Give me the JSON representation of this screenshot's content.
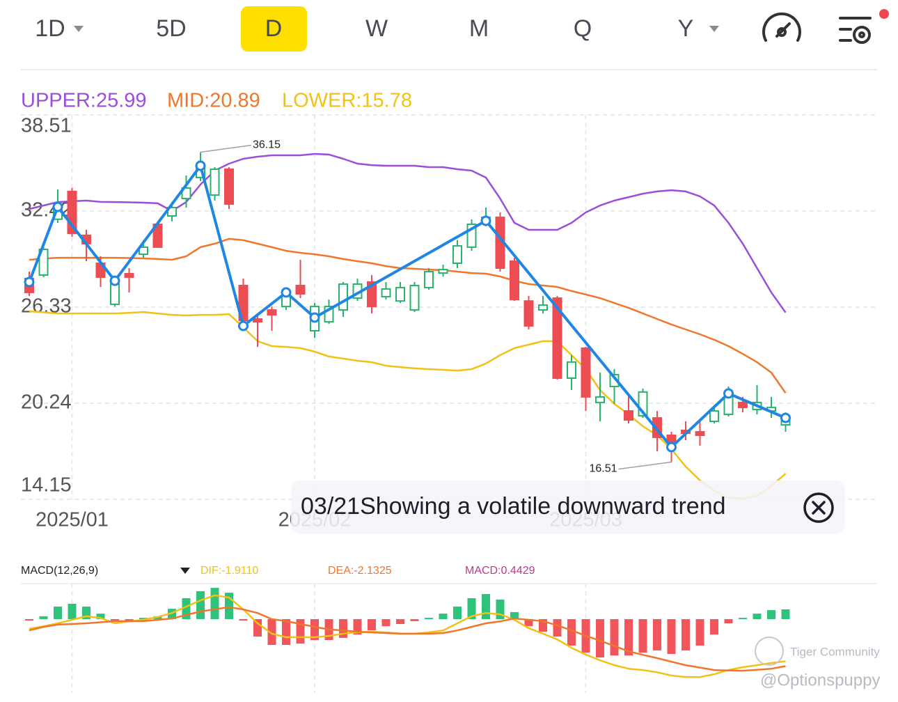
{
  "toolbar": {
    "tabs": [
      "1D",
      "5D",
      "D",
      "W",
      "M",
      "Q",
      "Y"
    ],
    "selected": 2,
    "dropdown_tabs": [
      0,
      6
    ]
  },
  "chart_data": {
    "type": "candlestick",
    "legend": [
      "UPPER:25.99",
      "MID:20.89",
      "LOWER:15.78"
    ],
    "ylim": [
      14.15,
      38.51
    ],
    "yticks": [
      14.15,
      20.24,
      26.33,
      32.42,
      38.51
    ],
    "grid": true,
    "xlim": [
      0,
      53
    ],
    "xticks": [
      {
        "value": 3,
        "label": "2025/01"
      },
      {
        "value": 20,
        "label": "2025/02"
      },
      {
        "value": 39,
        "label": "2025/03"
      }
    ],
    "up_color": "#27b36a",
    "down_color": "#ec4d53",
    "candles": {
      "open": [
        28.14,
        28.36,
        31.9,
        33.66,
        30.88,
        29.11,
        26.51,
        28.45,
        29.68,
        31.58,
        32.11,
        33.21,
        34.54,
        33.43,
        35.07,
        27.7,
        25.58,
        26.15,
        26.37,
        27.7,
        24.83,
        25.4,
        26.15,
        26.9,
        27.92,
        26.99,
        26.72,
        26.15,
        27.57,
        28.49,
        29.11,
        30.13,
        31.67,
        32.02,
        29.24,
        26.72,
        26.15,
        26.9,
        21.83,
        23.73,
        20.29,
        21.3,
        19.75,
        19.44,
        19.31,
        18.21,
        18.52,
        18.43,
        19.09,
        19.53,
        20.29,
        19.84,
        19.75,
        18.87
      ],
      "close": [
        27.26,
        29.99,
        32.77,
        31.0,
        30.35,
        28.23,
        27.92,
        28.23,
        30.13,
        30.13,
        32.64,
        33.88,
        35.29,
        35.07,
        32.86,
        25.49,
        25.4,
        25.84,
        27.26,
        27.17,
        26.37,
        26.37,
        27.79,
        27.79,
        26.37,
        27.48,
        27.57,
        27.7,
        28.58,
        28.71,
        30.21,
        31.58,
        32.02,
        28.8,
        26.81,
        25.14,
        26.46,
        21.83,
        22.85,
        20.64,
        20.64,
        22.05,
        19.18,
        20.95,
        18.08,
        17.77,
        18.34,
        18.21,
        19.75,
        20.86,
        19.97,
        20.29,
        19.97,
        19.4
      ],
      "high": [
        28.58,
        30.26,
        33.79,
        33.88,
        31.23,
        29.55,
        28.23,
        28.8,
        30.57,
        31.76,
        32.99,
        34.67,
        36.15,
        35.2,
        35.2,
        28.14,
        25.93,
        26.37,
        27.48,
        29.33,
        26.59,
        26.81,
        27.92,
        28.14,
        28.36,
        27.92,
        27.92,
        27.92,
        28.8,
        29.02,
        30.57,
        31.89,
        32.64,
        32.33,
        29.46,
        27.04,
        27.04,
        27.04,
        23.29,
        23.81,
        22.18,
        22.4,
        20.86,
        21.17,
        19.75,
        18.43,
        19.09,
        19.09,
        19.97,
        21.3,
        20.64,
        21.39,
        20.64,
        19.66
      ],
      "low": [
        27.04,
        28.23,
        31.67,
        30.78,
        29.24,
        27.6,
        26.37,
        27.26,
        29.46,
        30.13,
        31.76,
        32.64,
        34.32,
        33.08,
        32.55,
        24.83,
        23.81,
        24.83,
        26.15,
        26.9,
        24.39,
        25.27,
        25.71,
        26.72,
        25.93,
        26.81,
        26.59,
        26.02,
        27.43,
        28.27,
        28.8,
        29.9,
        31.45,
        28.58,
        26.72,
        24.92,
        25.93,
        21.74,
        21.08,
        19.75,
        19.09,
        20.2,
        18.96,
        19.31,
        17.2,
        16.51,
        17.9,
        17.55,
        18.96,
        19.4,
        19.66,
        19.53,
        19.31,
        18.43
      ]
    },
    "series": [
      {
        "color": "#9a4fdb",
        "values": [
          32.55,
          32.77,
          32.99,
          33.04,
          33.08,
          33.0,
          32.99,
          32.97,
          32.95,
          32.91,
          32.42,
          32.99,
          34.1,
          34.98,
          35.42,
          35.73,
          35.86,
          35.95,
          35.95,
          35.95,
          36.04,
          36.0,
          35.73,
          35.42,
          35.33,
          35.29,
          35.29,
          35.29,
          35.2,
          35.2,
          35.07,
          34.98,
          34.54,
          33.21,
          31.67,
          31.23,
          31.23,
          31.23,
          31.67,
          32.33,
          32.77,
          33.08,
          33.3,
          33.52,
          33.66,
          33.74,
          33.66,
          33.35,
          32.77,
          31.67,
          30.35,
          28.8,
          27.26,
          25.99
        ]
      },
      {
        "color": "#f0762b",
        "values": [
          29.33,
          29.4,
          29.46,
          29.46,
          29.46,
          29.46,
          29.46,
          29.44,
          29.42,
          29.38,
          29.33,
          29.55,
          30.13,
          30.35,
          30.66,
          30.57,
          30.35,
          30.13,
          29.9,
          29.77,
          29.68,
          29.55,
          29.38,
          29.24,
          29.11,
          28.93,
          28.8,
          28.76,
          28.71,
          28.67,
          28.58,
          28.49,
          28.45,
          28.27,
          28.0,
          27.79,
          27.7,
          27.61,
          27.35,
          27.13,
          26.9,
          26.59,
          26.28,
          25.93,
          25.58,
          25.23,
          24.92,
          24.61,
          24.26,
          23.86,
          23.37,
          22.84,
          22.18,
          20.89
        ]
      },
      {
        "color": "#f2c116",
        "values": [
          26.07,
          26.0,
          25.93,
          25.93,
          25.93,
          25.93,
          25.93,
          25.97,
          26.02,
          25.93,
          25.84,
          25.8,
          25.84,
          25.84,
          25.89,
          25.05,
          24.17,
          23.86,
          23.81,
          23.73,
          23.51,
          23.2,
          23.07,
          22.93,
          22.84,
          22.62,
          22.53,
          22.45,
          22.4,
          22.36,
          22.31,
          22.4,
          22.75,
          23.29,
          23.73,
          23.95,
          24.17,
          24.17,
          23.29,
          22.4,
          21.08,
          20.2,
          19.53,
          18.78,
          18.21,
          17.33,
          16.23,
          15.35,
          14.69,
          14.25,
          14.2,
          14.37,
          15.0,
          15.78
        ]
      }
    ],
    "zigzag": {
      "color": "#1f86e3",
      "x": [
        0,
        2,
        6,
        12,
        15,
        18,
        20,
        32,
        45,
        49,
        53
      ],
      "values": [
        27.92,
        32.68,
        28.0,
        35.29,
        25.14,
        27.26,
        25.67,
        31.8,
        17.46,
        20.86,
        19.31
      ]
    },
    "annotations": [
      {
        "index": 12,
        "value": 36.15
      },
      {
        "index": 45,
        "value": 16.51
      }
    ],
    "tooltip": "03/21Showing a volatile downward trend",
    "macd": {
      "title": "MACD(12,26,9)",
      "legend": [
        "DIF:-1.9110",
        "DEA:-2.1325",
        "MACD:0.4429"
      ],
      "ylim": [
        -3.35,
        1.55
      ],
      "hist": [
        -0.06,
        0.13,
        0.57,
        0.7,
        0.57,
        0.25,
        -0.09,
        -0.13,
        0.06,
        0.13,
        0.47,
        0.95,
        1.27,
        1.42,
        1.2,
        -0.06,
        -0.79,
        -1.17,
        -1.17,
        -1.11,
        -0.95,
        -0.95,
        -0.85,
        -0.7,
        -0.51,
        -0.32,
        -0.22,
        -0.09,
        0.06,
        0.25,
        0.57,
        0.95,
        1.14,
        0.89,
        0.32,
        -0.32,
        -0.57,
        -0.79,
        -1.2,
        -1.52,
        -1.74,
        -1.65,
        -1.65,
        -1.52,
        -1.42,
        -1.58,
        -1.42,
        -1.2,
        -0.7,
        -0.19,
        0.06,
        0.25,
        0.41,
        0.4429
      ],
      "series": [
        {
          "color": "#f2c116",
          "values": [
            -0.44,
            -0.32,
            -0.19,
            -0.03,
            0.13,
            0.05,
            -0.19,
            -0.1,
            -0.03,
            0.1,
            0.28,
            0.57,
            0.85,
            1.08,
            0.98,
            0.44,
            -0.19,
            -0.66,
            -0.82,
            -0.82,
            -0.82,
            -0.76,
            -0.66,
            -0.6,
            -0.57,
            -0.6,
            -0.66,
            -0.66,
            -0.6,
            -0.51,
            -0.19,
            0.13,
            0.28,
            0.22,
            -0.03,
            -0.41,
            -0.66,
            -0.92,
            -1.3,
            -1.61,
            -1.87,
            -2.09,
            -2.25,
            -2.31,
            -2.41,
            -2.56,
            -2.63,
            -2.63,
            -2.5,
            -2.31,
            -2.18,
            -2.09,
            -1.99,
            -1.911
          ]
        },
        {
          "color": "#f0762b",
          "values": [
            -0.51,
            -0.35,
            -0.25,
            -0.22,
            -0.19,
            -0.14,
            -0.09,
            -0.09,
            -0.09,
            -0.03,
            0.03,
            0.19,
            0.35,
            0.45,
            0.54,
            0.44,
            0.28,
            0.0,
            -0.09,
            -0.22,
            -0.35,
            -0.47,
            -0.51,
            -0.57,
            -0.6,
            -0.63,
            -0.66,
            -0.66,
            -0.66,
            -0.63,
            -0.51,
            -0.35,
            -0.19,
            -0.1,
            0.03,
            -0.03,
            -0.09,
            -0.28,
            -0.51,
            -0.75,
            -0.98,
            -1.22,
            -1.46,
            -1.62,
            -1.77,
            -1.93,
            -2.09,
            -2.2,
            -2.31,
            -2.33,
            -2.34,
            -2.3,
            -2.25,
            -2.1325
          ]
        }
      ],
      "legend_colors": [
        "#f2c116",
        "#f0762b",
        "#c2358f"
      ]
    }
  },
  "watermark": [
    "Tiger Community",
    "@Optionspuppy"
  ]
}
